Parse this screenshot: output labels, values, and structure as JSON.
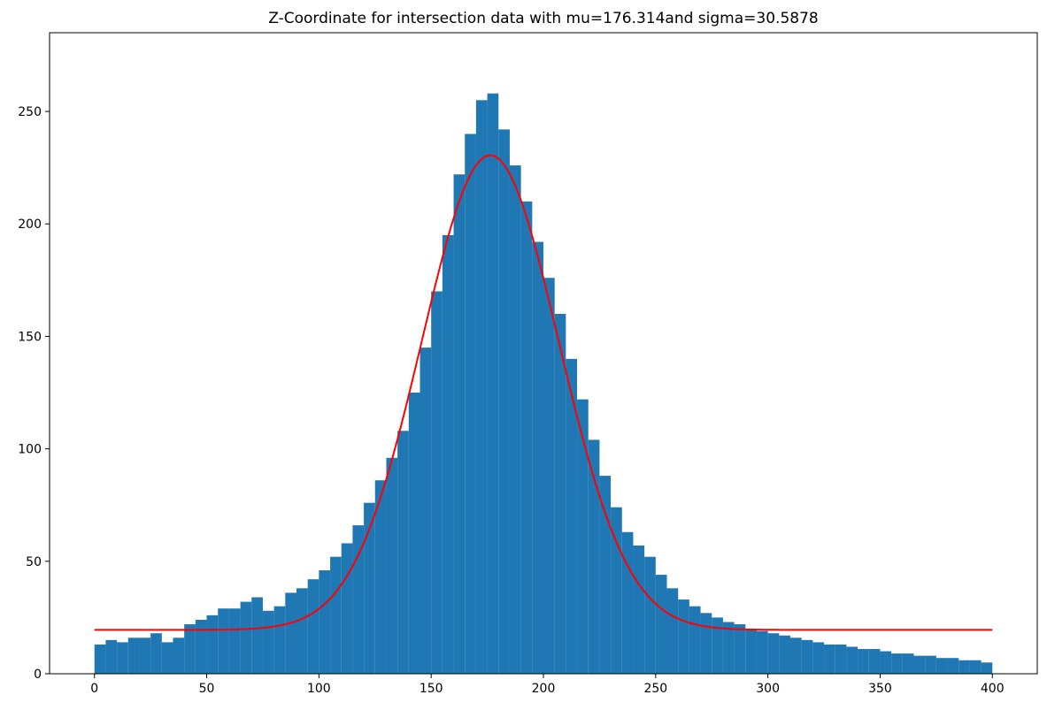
{
  "chart_data": {
    "type": "bar",
    "title": "Z-Coordinate for intersection data with mu=176.314and sigma=30.5878",
    "xlabel": "",
    "ylabel": "",
    "xlim": [
      -20,
      420
    ],
    "ylim": [
      0,
      285
    ],
    "x_ticks": [
      0,
      50,
      100,
      150,
      200,
      250,
      300,
      350,
      400
    ],
    "y_ticks": [
      0,
      50,
      100,
      150,
      200,
      250
    ],
    "grid": false,
    "bin_range": [
      0,
      400
    ],
    "bar_color": "#1f77b4",
    "fit_color": "#ff0000",
    "series": [
      {
        "type": "histogram",
        "bin_width": 5,
        "bin_starts": [
          0,
          5,
          10,
          15,
          20,
          25,
          30,
          35,
          40,
          45,
          50,
          55,
          60,
          65,
          70,
          75,
          80,
          85,
          90,
          95,
          100,
          105,
          110,
          115,
          120,
          125,
          130,
          135,
          140,
          145,
          150,
          155,
          160,
          165,
          170,
          175,
          180,
          185,
          190,
          195,
          200,
          205,
          210,
          215,
          220,
          225,
          230,
          235,
          240,
          245,
          250,
          255,
          260,
          265,
          270,
          275,
          280,
          285,
          290,
          295,
          300,
          305,
          310,
          315,
          320,
          325,
          330,
          335,
          340,
          345,
          350,
          355,
          360,
          365,
          370,
          375,
          380,
          385,
          390,
          395
        ],
        "values": [
          13,
          15,
          14,
          16,
          16,
          18,
          14,
          16,
          22,
          24,
          26,
          29,
          29,
          32,
          34,
          28,
          30,
          36,
          38,
          42,
          46,
          52,
          58,
          66,
          76,
          86,
          96,
          108,
          125,
          145,
          170,
          195,
          222,
          240,
          255,
          258,
          242,
          226,
          210,
          192,
          176,
          160,
          140,
          122,
          104,
          88,
          74,
          63,
          57,
          52,
          44,
          38,
          33,
          30,
          27,
          25,
          23,
          22,
          20,
          19,
          18,
          17,
          16,
          15,
          14,
          13,
          13,
          12,
          11,
          11,
          10,
          9,
          9,
          8,
          8,
          7,
          7,
          6,
          6,
          5
        ]
      },
      {
        "type": "line",
        "function": "gaussian_plus_offset",
        "mu": 176.314,
        "sigma": 30.5878,
        "amplitude": 211,
        "offset": 19.5,
        "x_range": [
          0,
          400
        ]
      }
    ]
  }
}
